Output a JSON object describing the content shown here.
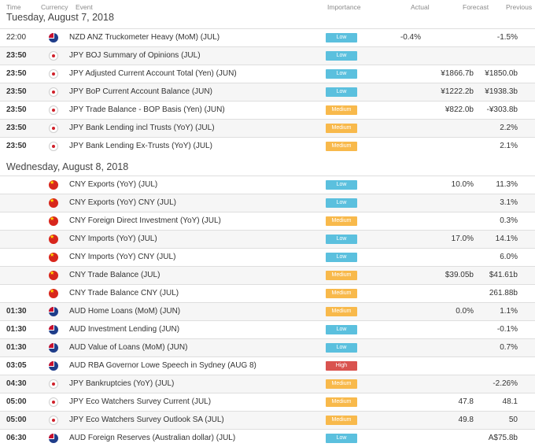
{
  "header": {
    "time": "Time",
    "currency": "Currency",
    "event": "Event",
    "importance": "Importance",
    "actual": "Actual",
    "forecast": "Forecast",
    "previous": "Previous"
  },
  "days": [
    {
      "title": "Tuesday, August 7, 2018",
      "rows": [
        {
          "time": "22:00",
          "bold": false,
          "flag": "nz",
          "event": "NZD ANZ Truckometer Heavy (MoM) (JUL)",
          "importance": "Low",
          "level": "low",
          "actual": "-0.4%",
          "forecast": "",
          "previous": "-1.5%"
        },
        {
          "time": "23:50",
          "bold": true,
          "flag": "jp",
          "event": "JPY BOJ Summary of Opinions (JUL)",
          "importance": "Low",
          "level": "low",
          "actual": "",
          "forecast": "",
          "previous": ""
        },
        {
          "time": "23:50",
          "bold": true,
          "flag": "jp",
          "event": "JPY Adjusted Current Account Total (Yen) (JUN)",
          "importance": "Low",
          "level": "low",
          "actual": "",
          "forecast": "¥1866.7b",
          "previous": "¥1850.0b"
        },
        {
          "time": "23:50",
          "bold": true,
          "flag": "jp",
          "event": "JPY BoP Current Account Balance (JUN)",
          "importance": "Low",
          "level": "low",
          "actual": "",
          "forecast": "¥1222.2b",
          "previous": "¥1938.3b"
        },
        {
          "time": "23:50",
          "bold": true,
          "flag": "jp",
          "event": "JPY Trade Balance - BOP Basis (Yen) (JUN)",
          "importance": "Medium",
          "level": "medium",
          "actual": "",
          "forecast": "¥822.0b",
          "previous": "-¥303.8b"
        },
        {
          "time": "23:50",
          "bold": true,
          "flag": "jp",
          "event": "JPY Bank Lending incl Trusts (YoY) (JUL)",
          "importance": "Medium",
          "level": "medium",
          "actual": "",
          "forecast": "",
          "previous": "2.2%"
        },
        {
          "time": "23:50",
          "bold": true,
          "flag": "jp",
          "event": "JPY Bank Lending Ex-Trusts (YoY) (JUL)",
          "importance": "Medium",
          "level": "medium",
          "actual": "",
          "forecast": "",
          "previous": "2.1%"
        }
      ]
    },
    {
      "title": "Wednesday, August 8, 2018",
      "rows": [
        {
          "time": "",
          "bold": false,
          "flag": "cn",
          "event": "CNY Exports (YoY) (JUL)",
          "importance": "Low",
          "level": "low",
          "actual": "",
          "forecast": "10.0%",
          "previous": "11.3%"
        },
        {
          "time": "",
          "bold": false,
          "flag": "cn",
          "event": "CNY Exports (YoY) CNY (JUL)",
          "importance": "Low",
          "level": "low",
          "actual": "",
          "forecast": "",
          "previous": "3.1%"
        },
        {
          "time": "",
          "bold": false,
          "flag": "cn",
          "event": "CNY Foreign Direct Investment (YoY) (JUL)",
          "importance": "Medium",
          "level": "medium",
          "actual": "",
          "forecast": "",
          "previous": "0.3%"
        },
        {
          "time": "",
          "bold": false,
          "flag": "cn",
          "event": "CNY Imports (YoY) (JUL)",
          "importance": "Low",
          "level": "low",
          "actual": "",
          "forecast": "17.0%",
          "previous": "14.1%"
        },
        {
          "time": "",
          "bold": false,
          "flag": "cn",
          "event": "CNY Imports (YoY) CNY (JUL)",
          "importance": "Low",
          "level": "low",
          "actual": "",
          "forecast": "",
          "previous": "6.0%"
        },
        {
          "time": "",
          "bold": false,
          "flag": "cn",
          "event": "CNY Trade Balance (JUL)",
          "importance": "Medium",
          "level": "medium",
          "actual": "",
          "forecast": "$39.05b",
          "previous": "$41.61b"
        },
        {
          "time": "",
          "bold": false,
          "flag": "cn",
          "event": "CNY Trade Balance CNY (JUL)",
          "importance": "Medium",
          "level": "medium",
          "actual": "",
          "forecast": "",
          "previous": "261.88b"
        },
        {
          "time": "01:30",
          "bold": true,
          "flag": "au",
          "event": "AUD Home Loans (MoM) (JUN)",
          "importance": "Medium",
          "level": "medium",
          "actual": "",
          "forecast": "0.0%",
          "previous": "1.1%"
        },
        {
          "time": "01:30",
          "bold": true,
          "flag": "au",
          "event": "AUD Investment Lending (JUN)",
          "importance": "Low",
          "level": "low",
          "actual": "",
          "forecast": "",
          "previous": "-0.1%"
        },
        {
          "time": "01:30",
          "bold": true,
          "flag": "au",
          "event": "AUD Value of Loans (MoM) (JUN)",
          "importance": "Low",
          "level": "low",
          "actual": "",
          "forecast": "",
          "previous": "0.7%"
        },
        {
          "time": "03:05",
          "bold": true,
          "flag": "au",
          "event": "AUD RBA Governor Lowe Speech in Sydney (AUG 8)",
          "importance": "High",
          "level": "high",
          "actual": "",
          "forecast": "",
          "previous": ""
        },
        {
          "time": "04:30",
          "bold": true,
          "flag": "jp",
          "event": "JPY Bankruptcies (YoY) (JUL)",
          "importance": "Medium",
          "level": "medium",
          "actual": "",
          "forecast": "",
          "previous": "-2.26%"
        },
        {
          "time": "05:00",
          "bold": true,
          "flag": "jp",
          "event": "JPY Eco Watchers Survey Current (JUL)",
          "importance": "Medium",
          "level": "medium",
          "actual": "",
          "forecast": "47.8",
          "previous": "48.1"
        },
        {
          "time": "05:00",
          "bold": true,
          "flag": "jp",
          "event": "JPY Eco Watchers Survey Outlook SA (JUL)",
          "importance": "Medium",
          "level": "medium",
          "actual": "",
          "forecast": "49.8",
          "previous": "50"
        },
        {
          "time": "06:30",
          "bold": true,
          "flag": "au",
          "event": "AUD Foreign Reserves (Australian dollar) (JUL)",
          "importance": "Low",
          "level": "low",
          "actual": "",
          "forecast": "",
          "previous": "A$75.8b"
        }
      ]
    }
  ]
}
